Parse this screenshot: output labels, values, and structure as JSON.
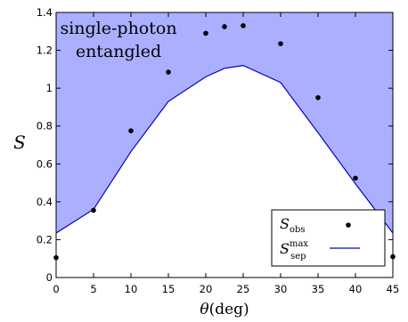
{
  "chart_data": {
    "type": "line",
    "title": "",
    "xlabel": "θ(deg)",
    "ylabel": "S",
    "xlim": [
      0,
      45
    ],
    "ylim": [
      0,
      1.4
    ],
    "x_ticks": [
      "0",
      "5",
      "10",
      "15",
      "20",
      "25",
      "30",
      "35",
      "40",
      "45"
    ],
    "y_ticks": [
      "0",
      "0.2",
      "0.4",
      "0.6",
      "0.8",
      "1",
      "1.2",
      "1.4"
    ],
    "series": [
      {
        "name": "S_obs",
        "style": "scatter",
        "color": "#000000",
        "x": [
          0,
          5,
          10,
          15,
          20,
          22.5,
          25,
          30,
          35,
          40,
          45
        ],
        "y": [
          0.105,
          0.355,
          0.775,
          1.085,
          1.29,
          1.325,
          1.33,
          1.235,
          0.95,
          0.525,
          0.11
        ]
      },
      {
        "name": "S_sep^max",
        "style": "line",
        "color": "#0000cc",
        "x": [
          0,
          5,
          10,
          15,
          20,
          22.5,
          25,
          30,
          35,
          40,
          45
        ],
        "y": [
          0.235,
          0.36,
          0.665,
          0.93,
          1.06,
          1.105,
          1.12,
          1.03,
          0.765,
          0.495,
          0.235
        ]
      }
    ],
    "shaded_region": {
      "label": [
        "single-photon",
        "entangled"
      ],
      "color": "#aab0ff",
      "description_position": "top-left"
    },
    "legend": {
      "position": "lower-right",
      "entries": [
        {
          "symbol": "S",
          "sub": "obs",
          "sup": ""
        },
        {
          "symbol": "S",
          "sub": "sep",
          "sup": "max"
        }
      ]
    },
    "grid": false
  }
}
